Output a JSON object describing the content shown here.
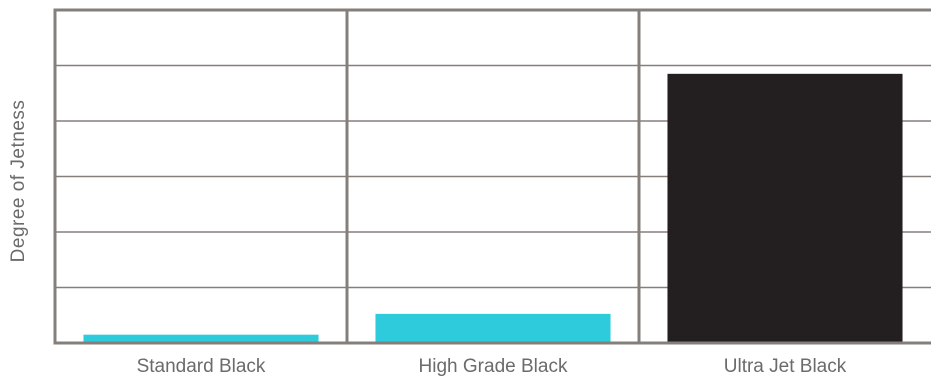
{
  "chart_data": {
    "type": "bar",
    "title": "",
    "xlabel": "",
    "ylabel": "Degree of Jetness",
    "categories": [
      "Standard Black",
      "High Grade Black",
      "Ultra Jet Black"
    ],
    "values": [
      3,
      10.5,
      97
    ],
    "bar_colors": [
      "#2ecbdc",
      "#2ecbdc",
      "#231f20"
    ],
    "ylim": [
      0,
      120
    ],
    "grid": true,
    "legend": "none",
    "colors": {
      "frame": "#857f7b",
      "gridline": "#857f7b",
      "text": "#6b6b6b"
    }
  }
}
